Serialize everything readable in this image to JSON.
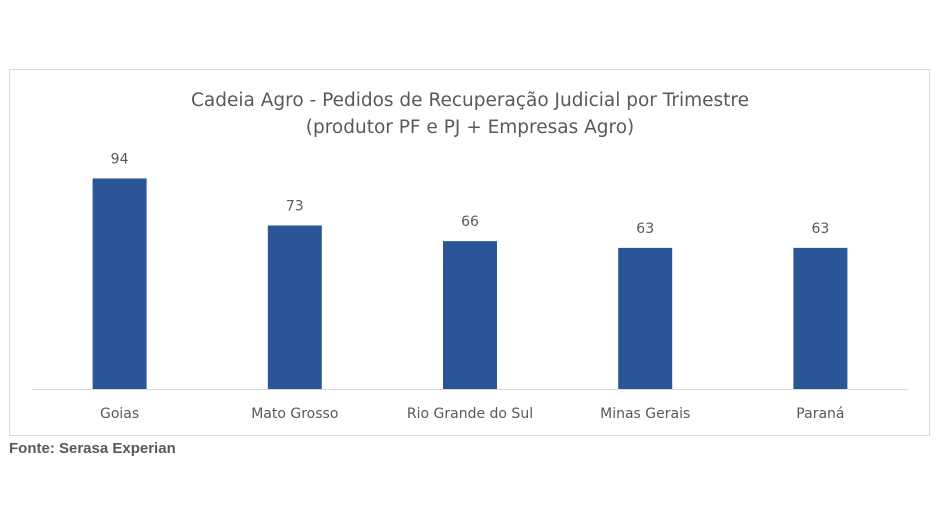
{
  "chart_data": {
    "type": "bar",
    "title": "Cadeia Agro - Pedidos de Recuperação Judicial por Trimestre",
    "subtitle": "(produtor PF e PJ + Empresas Agro)",
    "categories": [
      "Goias",
      "Mato Grosso",
      "Rio Grande do Sul",
      "Minas Gerais",
      "Paraná"
    ],
    "values": [
      94,
      73,
      66,
      63,
      63
    ],
    "ylim": [
      0,
      100
    ],
    "grid": false,
    "data_labels": true,
    "bar_color": "#2A5596"
  },
  "source": "Fonte: Serasa Experian",
  "colors": {
    "axis": "#d9d9d9",
    "text": "#595959"
  }
}
